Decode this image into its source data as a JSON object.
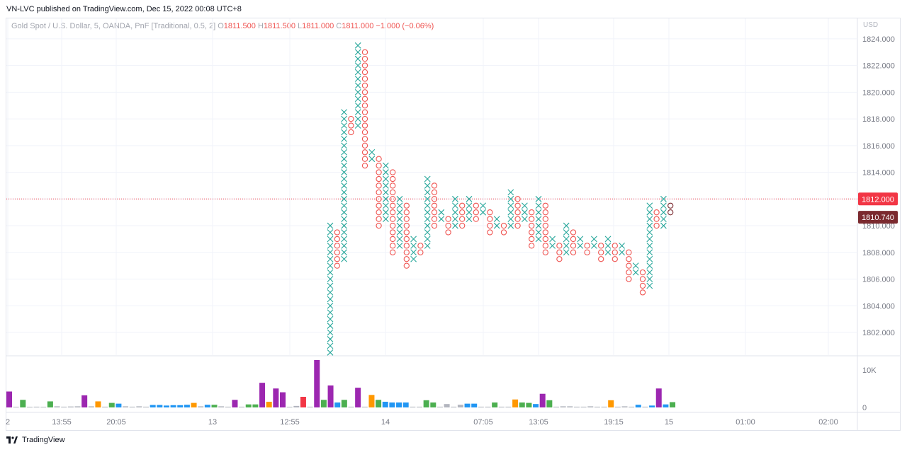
{
  "publisher": "VN-LVC published on TradingView.com, Dec 15, 2022 00:08 UTC+8",
  "legend": {
    "symbol": "Gold Spot / U.S. Dollar, 5, OANDA, PnF [Traditional, 0.5, 2]",
    "open_label": "O",
    "open": "1811.500",
    "high_label": "H",
    "high": "1811.500",
    "low_label": "L",
    "low": "1811.000",
    "close_label": "C",
    "close": "1811.000",
    "change": "−1.000 (−0.06%)"
  },
  "currency": "USD",
  "footer_brand": "TradingView",
  "colors": {
    "up": "#26a69a",
    "down": "#ef5350",
    "grid": "#f0f3fa",
    "price_badge": "#f23645",
    "last_badge": "#7b2a2f"
  },
  "chart_data": {
    "type": "point-and-figure",
    "box_size": 0.5,
    "reversal": 2,
    "ylim": [
      1800,
      1825
    ],
    "y_ticks": [
      "1802.000",
      "1804.000",
      "1806.000",
      "1808.000",
      "1810.000",
      "1812.000",
      "1814.000",
      "1816.000",
      "1818.000",
      "1820.000",
      "1822.000",
      "1824.000"
    ],
    "x_ticks": [
      "2",
      "13:55",
      "20:05",
      "13",
      "12:55",
      "14",
      "07:05",
      "13:05",
      "19:15",
      "15",
      "01:00",
      "02:00"
    ],
    "price_line": 1812.0,
    "price_badge": "1812.000",
    "last_value": 1810.74,
    "last_badge": "1810.740",
    "columns": [
      {
        "t": "X",
        "lo": 1800.5,
        "hi": 1810.0
      },
      {
        "t": "O",
        "lo": 1807.0,
        "hi": 1809.5
      },
      {
        "t": "X",
        "lo": 1807.5,
        "hi": 1818.5
      },
      {
        "t": "O",
        "lo": 1817.0,
        "hi": 1818.0
      },
      {
        "t": "X",
        "lo": 1817.5,
        "hi": 1823.5
      },
      {
        "t": "O",
        "lo": 1814.5,
        "hi": 1823.0
      },
      {
        "t": "X",
        "lo": 1815.0,
        "hi": 1815.5
      },
      {
        "t": "O",
        "lo": 1810.0,
        "hi": 1815.0
      },
      {
        "t": "X",
        "lo": 1810.5,
        "hi": 1814.5
      },
      {
        "t": "O",
        "lo": 1808.0,
        "hi": 1814.0
      },
      {
        "t": "X",
        "lo": 1808.5,
        "hi": 1812.0
      },
      {
        "t": "O",
        "lo": 1807.0,
        "hi": 1811.5
      },
      {
        "t": "X",
        "lo": 1807.5,
        "hi": 1809.0
      },
      {
        "t": "O",
        "lo": 1808.0,
        "hi": 1808.5
      },
      {
        "t": "X",
        "lo": 1808.5,
        "hi": 1813.5
      },
      {
        "t": "O",
        "lo": 1810.0,
        "hi": 1813.0
      },
      {
        "t": "X",
        "lo": 1810.5,
        "hi": 1811.0
      },
      {
        "t": "O",
        "lo": 1809.5,
        "hi": 1810.5
      },
      {
        "t": "X",
        "lo": 1810.0,
        "hi": 1812.0
      },
      {
        "t": "O",
        "lo": 1810.0,
        "hi": 1811.5
      },
      {
        "t": "X",
        "lo": 1810.5,
        "hi": 1812.0
      },
      {
        "t": "O",
        "lo": 1810.5,
        "hi": 1811.5
      },
      {
        "t": "X",
        "lo": 1811.0,
        "hi": 1811.5
      },
      {
        "t": "O",
        "lo": 1809.5,
        "hi": 1811.0
      },
      {
        "t": "X",
        "lo": 1810.0,
        "hi": 1810.5
      },
      {
        "t": "O",
        "lo": 1809.5,
        "hi": 1810.0
      },
      {
        "t": "X",
        "lo": 1810.0,
        "hi": 1812.5
      },
      {
        "t": "O",
        "lo": 1810.0,
        "hi": 1812.0
      },
      {
        "t": "X",
        "lo": 1810.5,
        "hi": 1811.5
      },
      {
        "t": "O",
        "lo": 1808.5,
        "hi": 1811.0
      },
      {
        "t": "X",
        "lo": 1809.0,
        "hi": 1812.0
      },
      {
        "t": "O",
        "lo": 1808.0,
        "hi": 1811.5
      },
      {
        "t": "X",
        "lo": 1808.5,
        "hi": 1809.0
      },
      {
        "t": "O",
        "lo": 1807.5,
        "hi": 1808.5
      },
      {
        "t": "X",
        "lo": 1808.0,
        "hi": 1810.0
      },
      {
        "t": "O",
        "lo": 1808.0,
        "hi": 1809.5
      },
      {
        "t": "X",
        "lo": 1808.5,
        "hi": 1809.0
      },
      {
        "t": "O",
        "lo": 1808.0,
        "hi": 1808.5
      },
      {
        "t": "X",
        "lo": 1808.5,
        "hi": 1809.0
      },
      {
        "t": "O",
        "lo": 1807.5,
        "hi": 1808.5
      },
      {
        "t": "X",
        "lo": 1808.0,
        "hi": 1809.0
      },
      {
        "t": "O",
        "lo": 1807.5,
        "hi": 1808.5
      },
      {
        "t": "X",
        "lo": 1808.0,
        "hi": 1808.5
      },
      {
        "t": "O",
        "lo": 1806.0,
        "hi": 1808.0
      },
      {
        "t": "X",
        "lo": 1806.5,
        "hi": 1807.0
      },
      {
        "t": "O",
        "lo": 1805.0,
        "hi": 1806.5
      },
      {
        "t": "X",
        "lo": 1805.5,
        "hi": 1811.5
      },
      {
        "t": "O",
        "lo": 1810.0,
        "hi": 1811.0
      },
      {
        "t": "X",
        "lo": 1810.0,
        "hi": 1812.0
      },
      {
        "t": "O",
        "lo": 1811.0,
        "hi": 1811.5
      }
    ],
    "volume_axis": {
      "labels": [
        "10K",
        "0"
      ],
      "max": 12500
    },
    "volume": [
      {
        "v": 4200,
        "c": "#9c27b0"
      },
      {
        "v": 150,
        "c": "#b2b5be"
      },
      {
        "v": 2000,
        "c": "#4caf50"
      },
      {
        "v": 150,
        "c": "#b2b5be"
      },
      {
        "v": 200,
        "c": "#b2b5be"
      },
      {
        "v": 100,
        "c": "#b2b5be"
      },
      {
        "v": 1600,
        "c": "#4caf50"
      },
      {
        "v": 300,
        "c": "#b2b5be"
      },
      {
        "v": 200,
        "c": "#b2b5be"
      },
      {
        "v": 250,
        "c": "#b2b5be"
      },
      {
        "v": 300,
        "c": "#b2b5be"
      },
      {
        "v": 3200,
        "c": "#9c27b0"
      },
      {
        "v": 300,
        "c": "#b2b5be"
      },
      {
        "v": 1600,
        "c": "#ff9800"
      },
      {
        "v": 200,
        "c": "#b2b5be"
      },
      {
        "v": 1200,
        "c": "#4caf50"
      },
      {
        "v": 1000,
        "c": "#2196f3"
      },
      {
        "v": 300,
        "c": "#b2b5be"
      },
      {
        "v": 200,
        "c": "#b2b5be"
      },
      {
        "v": 300,
        "c": "#b2b5be"
      },
      {
        "v": 200,
        "c": "#b2b5be"
      },
      {
        "v": 650,
        "c": "#2196f3"
      },
      {
        "v": 650,
        "c": "#2196f3"
      },
      {
        "v": 500,
        "c": "#2196f3"
      },
      {
        "v": 600,
        "c": "#2196f3"
      },
      {
        "v": 600,
        "c": "#2196f3"
      },
      {
        "v": 700,
        "c": "#2196f3"
      },
      {
        "v": 1200,
        "c": "#ff9800"
      },
      {
        "v": 300,
        "c": "#b2b5be"
      },
      {
        "v": 700,
        "c": "#2196f3"
      },
      {
        "v": 700,
        "c": "#4caf50"
      },
      {
        "v": 300,
        "c": "#b2b5be"
      },
      {
        "v": 200,
        "c": "#b2b5be"
      },
      {
        "v": 2000,
        "c": "#9c27b0"
      },
      {
        "v": 200,
        "c": "#b2b5be"
      },
      {
        "v": 800,
        "c": "#4caf50"
      },
      {
        "v": 800,
        "c": "#4caf50"
      },
      {
        "v": 6500,
        "c": "#9c27b0"
      },
      {
        "v": 1500,
        "c": "#ff9800"
      },
      {
        "v": 5000,
        "c": "#9c27b0"
      },
      {
        "v": 4000,
        "c": "#9c27b0"
      },
      {
        "v": 150,
        "c": "#b2b5be"
      },
      {
        "v": 400,
        "c": "#b2b5be"
      },
      {
        "v": 2800,
        "c": "#f23645"
      },
      {
        "v": 200,
        "c": "#b2b5be"
      },
      {
        "v": 12500,
        "c": "#9c27b0"
      },
      {
        "v": 2000,
        "c": "#4caf50"
      },
      {
        "v": 5800,
        "c": "#9c27b0"
      },
      {
        "v": 1300,
        "c": "#2196f3"
      },
      {
        "v": 2000,
        "c": "#4caf50"
      },
      {
        "v": 200,
        "c": "#b2b5be"
      },
      {
        "v": 5200,
        "c": "#9c27b0"
      },
      {
        "v": 200,
        "c": "#b2b5be"
      },
      {
        "v": 3300,
        "c": "#ff9800"
      },
      {
        "v": 2000,
        "c": "#4caf50"
      },
      {
        "v": 1500,
        "c": "#2196f3"
      },
      {
        "v": 1300,
        "c": "#2196f3"
      },
      {
        "v": 1300,
        "c": "#2196f3"
      },
      {
        "v": 1300,
        "c": "#2196f3"
      },
      {
        "v": 200,
        "c": "#b2b5be"
      },
      {
        "v": 200,
        "c": "#b2b5be"
      },
      {
        "v": 1900,
        "c": "#4caf50"
      },
      {
        "v": 1300,
        "c": "#4caf50"
      },
      {
        "v": 200,
        "c": "#b2b5be"
      },
      {
        "v": 900,
        "c": "#b2b5be"
      },
      {
        "v": 200,
        "c": "#b2b5be"
      },
      {
        "v": 700,
        "c": "#b2b5be"
      },
      {
        "v": 1000,
        "c": "#2196f3"
      },
      {
        "v": 1000,
        "c": "#2196f3"
      },
      {
        "v": 200,
        "c": "#b2b5be"
      },
      {
        "v": 200,
        "c": "#b2b5be"
      },
      {
        "v": 1300,
        "c": "#4caf50"
      },
      {
        "v": 200,
        "c": "#b2b5be"
      },
      {
        "v": 200,
        "c": "#b2b5be"
      },
      {
        "v": 2100,
        "c": "#ff9800"
      },
      {
        "v": 1300,
        "c": "#4caf50"
      },
      {
        "v": 1200,
        "c": "#4caf50"
      },
      {
        "v": 900,
        "c": "#2196f3"
      },
      {
        "v": 3600,
        "c": "#9c27b0"
      },
      {
        "v": 1900,
        "c": "#4caf50"
      },
      {
        "v": 200,
        "c": "#b2b5be"
      },
      {
        "v": 300,
        "c": "#b2b5be"
      },
      {
        "v": 300,
        "c": "#b2b5be"
      },
      {
        "v": 200,
        "c": "#b2b5be"
      },
      {
        "v": 200,
        "c": "#b2b5be"
      },
      {
        "v": 300,
        "c": "#b2b5be"
      },
      {
        "v": 200,
        "c": "#b2b5be"
      },
      {
        "v": 200,
        "c": "#b2b5be"
      },
      {
        "v": 1900,
        "c": "#ff9800"
      },
      {
        "v": 200,
        "c": "#b2b5be"
      },
      {
        "v": 300,
        "c": "#b2b5be"
      },
      {
        "v": 200,
        "c": "#b2b5be"
      },
      {
        "v": 700,
        "c": "#2196f3"
      },
      {
        "v": 200,
        "c": "#b2b5be"
      },
      {
        "v": 500,
        "c": "#2196f3"
      },
      {
        "v": 5000,
        "c": "#9c27b0"
      },
      {
        "v": 800,
        "c": "#2196f3"
      },
      {
        "v": 1400,
        "c": "#4caf50"
      }
    ]
  }
}
